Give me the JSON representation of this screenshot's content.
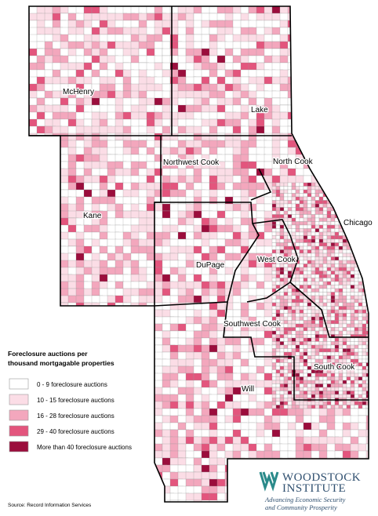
{
  "regions": [
    {
      "label": "McHenry"
    },
    {
      "label": "Lake"
    },
    {
      "label": "Northwest Cook"
    },
    {
      "label": "North Cook"
    },
    {
      "label": "Kane"
    },
    {
      "label": "Chicago"
    },
    {
      "label": "DuPage"
    },
    {
      "label": "West Cook"
    },
    {
      "label": "Southwest Cook"
    },
    {
      "label": "South Cook"
    },
    {
      "label": "Will"
    }
  ],
  "legend": {
    "title": [
      "Foreclosure auctions per",
      "thousand mortgagable properties"
    ],
    "items": [
      {
        "label": "0 - 9 foreclosure auctions",
        "color": "#ffffff"
      },
      {
        "label": "10 - 15 foreclosure auctions",
        "color": "#fbdde6"
      },
      {
        "label": "16 - 28 foreclosure auctions",
        "color": "#f3a7bd"
      },
      {
        "label": "29 - 40 foreclosure auctions",
        "color": "#e3557d"
      },
      {
        "label": "More than 40 foreclosure auctions",
        "color": "#9b0d3c"
      }
    ]
  },
  "source": "Source: Record Information Services",
  "logo": {
    "name": [
      "WOODSTOCK",
      "INSTITUTE"
    ],
    "tagline": [
      "Advancing Economic Security",
      "and Community Prosperity"
    ]
  }
}
